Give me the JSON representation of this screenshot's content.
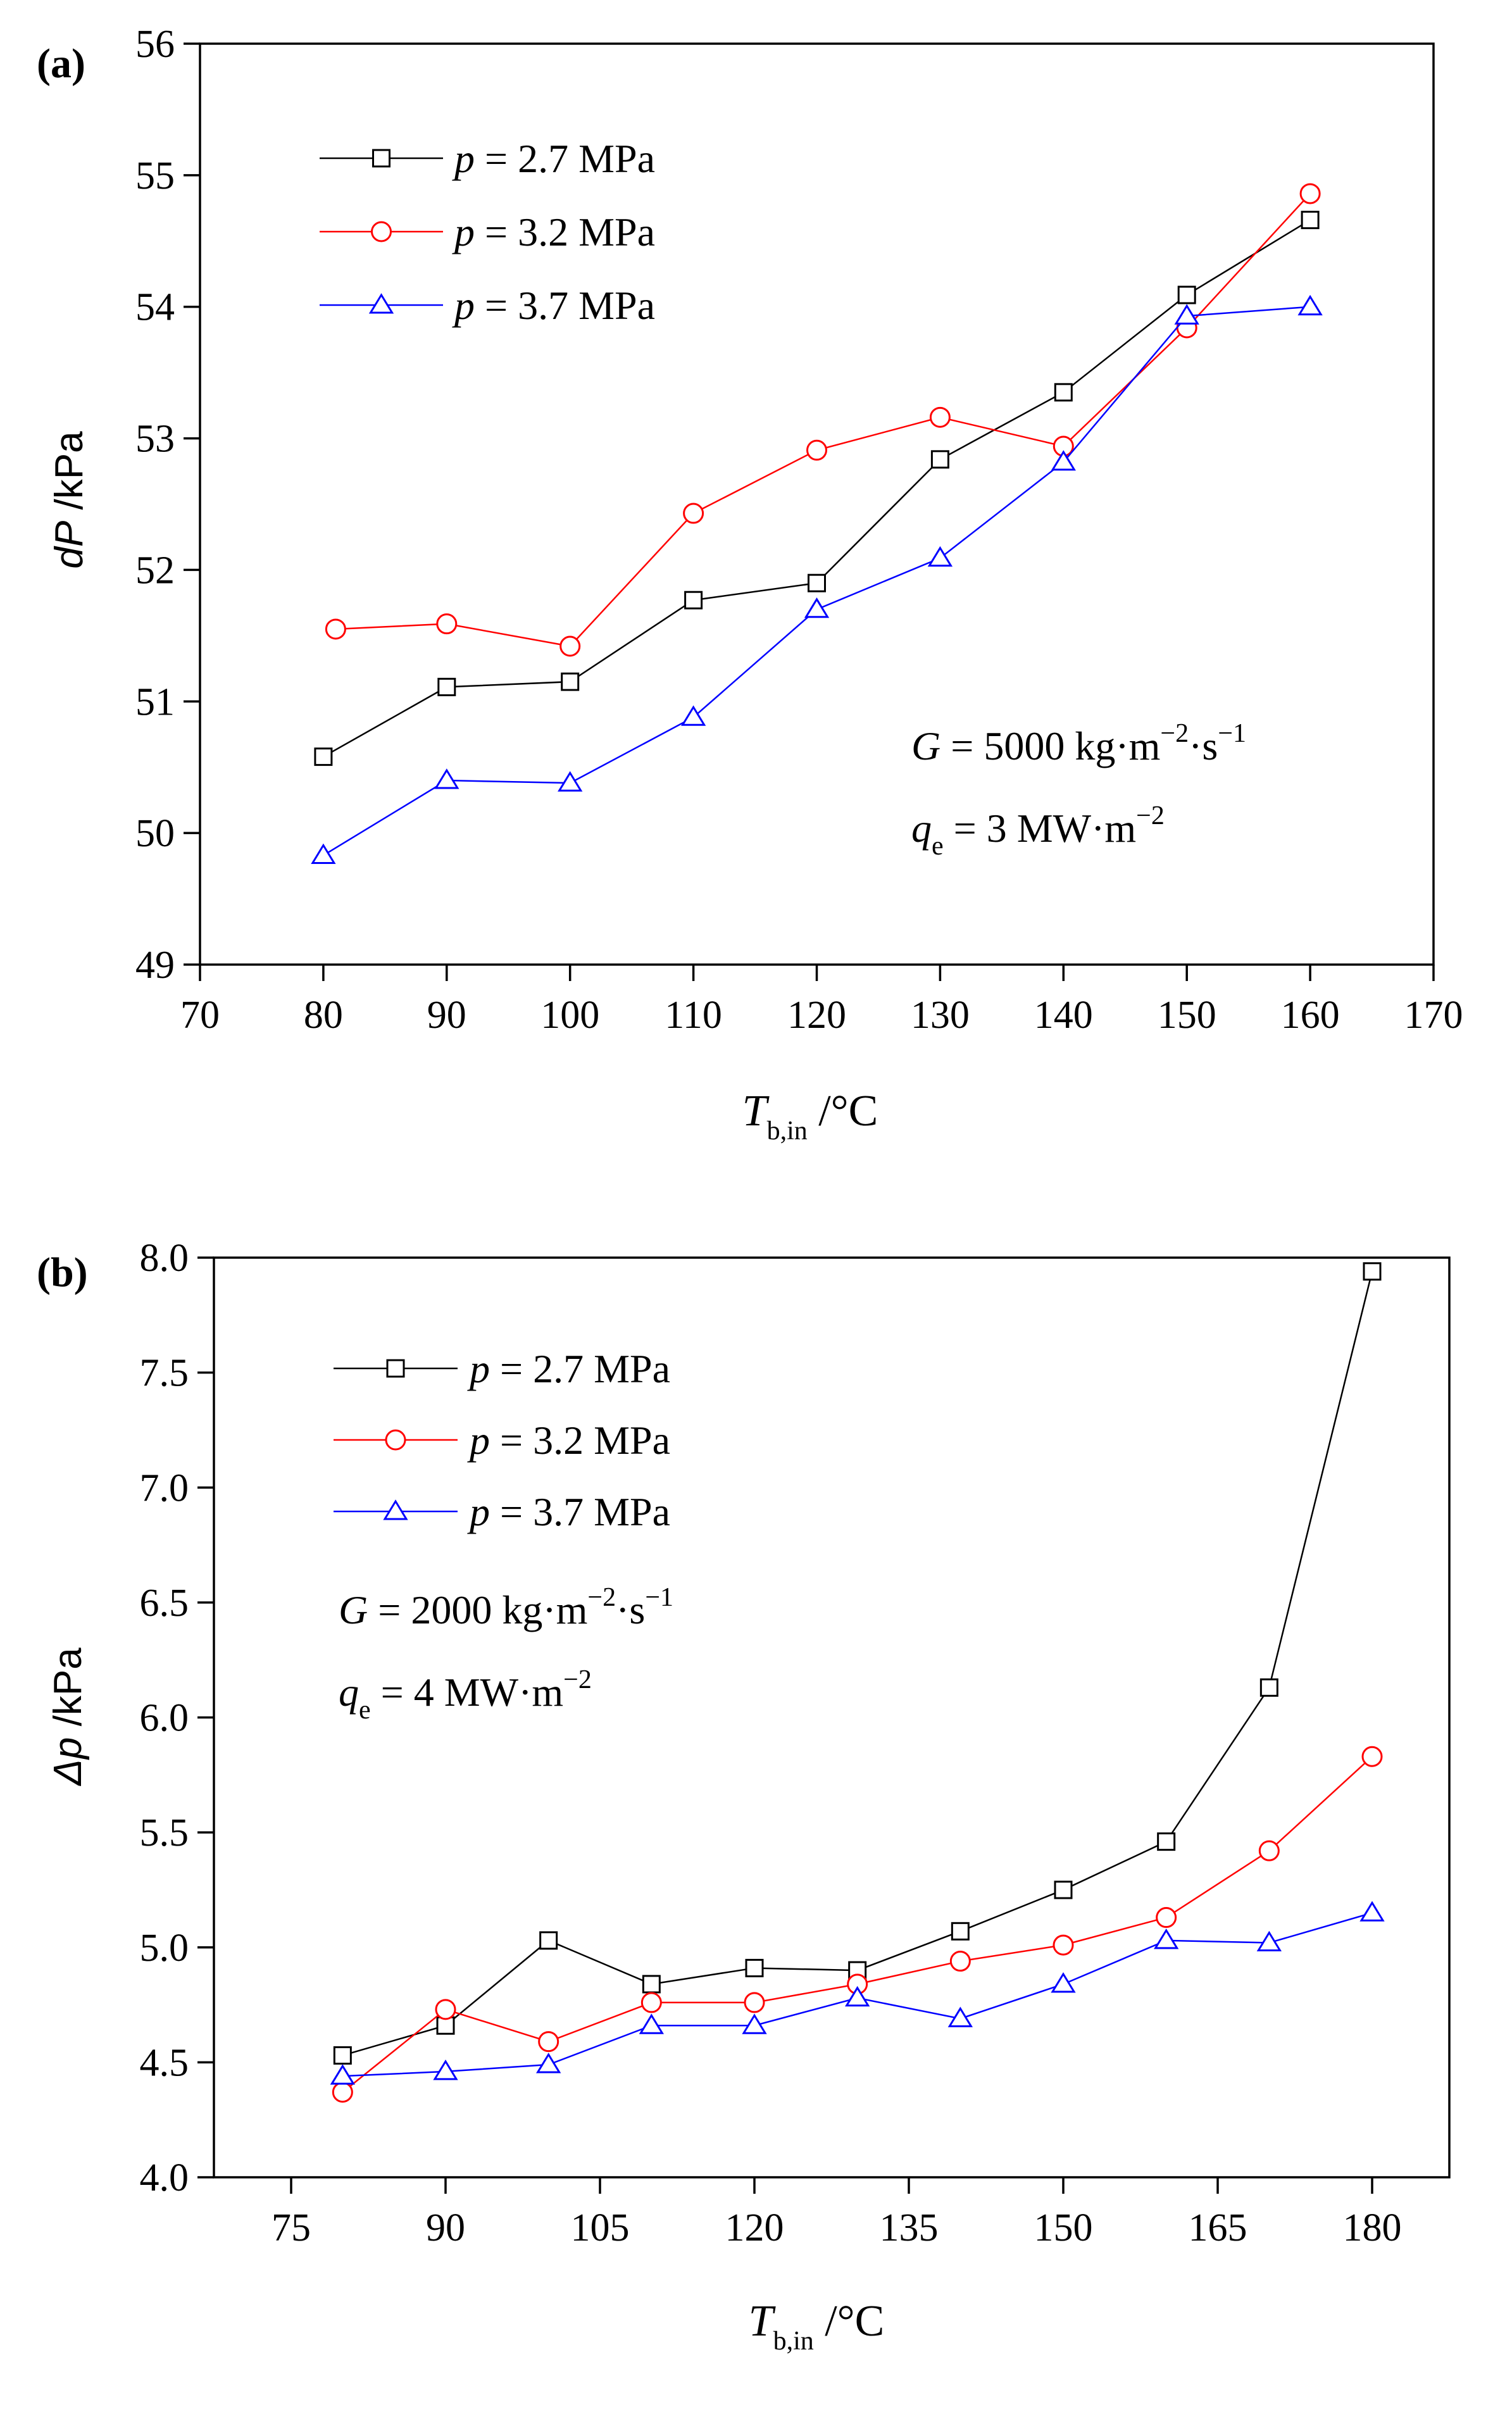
{
  "chart_data": [
    {
      "type": "line",
      "panel_label": "(a)",
      "xlabel_main": "T",
      "xlabel_sub": "b,in",
      "xlabel_unit": " /°C",
      "ylabel_main": "dP",
      "ylabel_unit": " /kPa",
      "xlim": [
        70,
        170
      ],
      "ylim": [
        49,
        56
      ],
      "xticks": [
        70,
        80,
        90,
        100,
        110,
        120,
        130,
        140,
        150,
        160,
        170
      ],
      "yticks": [
        49,
        50,
        51,
        52,
        53,
        54,
        55,
        56
      ],
      "legend_position": "top-left",
      "series": [
        {
          "name": "2.7 MPa",
          "legend_var": "p",
          "marker": "square",
          "color": "#000000",
          "x": [
            80,
            90,
            100,
            110,
            120,
            130,
            140,
            150,
            160
          ],
          "y": [
            50.58,
            51.11,
            51.15,
            51.77,
            51.9,
            52.84,
            53.35,
            54.09,
            54.66
          ]
        },
        {
          "name": "3.2 MPa",
          "legend_var": "p",
          "marker": "circle",
          "color": "#ff0000",
          "x": [
            81,
            90,
            100,
            110,
            120,
            130,
            140,
            150,
            160
          ],
          "y": [
            51.55,
            51.59,
            51.42,
            52.43,
            52.91,
            53.16,
            52.94,
            53.84,
            54.86
          ]
        },
        {
          "name": "3.7 MPa",
          "legend_var": "p",
          "marker": "triangle",
          "color": "#0000ff",
          "x": [
            80,
            90,
            100,
            110,
            120,
            130,
            140,
            150,
            160
          ],
          "y": [
            49.83,
            50.4,
            50.38,
            50.88,
            51.7,
            52.09,
            52.82,
            53.93,
            54.0
          ]
        }
      ],
      "annotations": [
        {
          "var": "G",
          "sub": "",
          "eq": " = 5000 kg·m",
          "sup1": "−2",
          "mid": "·s",
          "sup2": "−1"
        },
        {
          "var": "q",
          "sub": "e",
          "eq": " = 3 MW·m",
          "sup1": "−2",
          "mid": "",
          "sup2": ""
        }
      ]
    },
    {
      "type": "line",
      "panel_label": "(b)",
      "xlabel_main": "T",
      "xlabel_sub": "b,in",
      "xlabel_unit": " /°C",
      "ylabel_main": "Δp",
      "ylabel_unit": " /kPa",
      "xlim": [
        67.5,
        187.5
      ],
      "ylim": [
        4.0,
        8.0
      ],
      "xticks": [
        75,
        90,
        105,
        120,
        135,
        150,
        165,
        180
      ],
      "yticks": [
        4.0,
        4.5,
        5.0,
        5.5,
        6.0,
        6.5,
        7.0,
        7.5,
        8.0
      ],
      "ytick_labels": [
        "4.0",
        "4.5",
        "5.0",
        "5.5",
        "6.0",
        "6.5",
        "7.0",
        "7.5",
        "8.0"
      ],
      "legend_position": "top-left",
      "series": [
        {
          "name": "2.7 MPa",
          "legend_var": "p",
          "marker": "square",
          "color": "#000000",
          "x": [
            80,
            90,
            100,
            110,
            120,
            130,
            140,
            150,
            160,
            170,
            180
          ],
          "y": [
            4.53,
            4.66,
            5.03,
            4.84,
            4.91,
            4.9,
            5.07,
            5.25,
            5.46,
            6.13,
            7.94
          ]
        },
        {
          "name": "3.2 MPa",
          "legend_var": "p",
          "marker": "circle",
          "color": "#ff0000",
          "x": [
            80,
            90,
            100,
            110,
            120,
            130,
            140,
            150,
            160,
            170,
            180
          ],
          "y": [
            4.37,
            4.73,
            4.59,
            4.76,
            4.76,
            4.84,
            4.94,
            5.01,
            5.13,
            5.42,
            5.83
          ]
        },
        {
          "name": "3.7 MPa",
          "legend_var": "p",
          "marker": "triangle",
          "color": "#0000ff",
          "x": [
            80,
            90,
            100,
            110,
            120,
            130,
            140,
            150,
            160,
            170,
            180
          ],
          "y": [
            4.44,
            4.46,
            4.49,
            4.66,
            4.66,
            4.78,
            4.69,
            4.84,
            5.03,
            5.02,
            5.15
          ]
        }
      ],
      "annotations": [
        {
          "var": "G",
          "sub": "",
          "eq": " = 2000 kg·m",
          "sup1": "−2",
          "mid": "·s",
          "sup2": "−1"
        },
        {
          "var": "q",
          "sub": "e",
          "eq": " = 4 MW·m",
          "sup1": "−2",
          "mid": "",
          "sup2": ""
        }
      ]
    }
  ]
}
